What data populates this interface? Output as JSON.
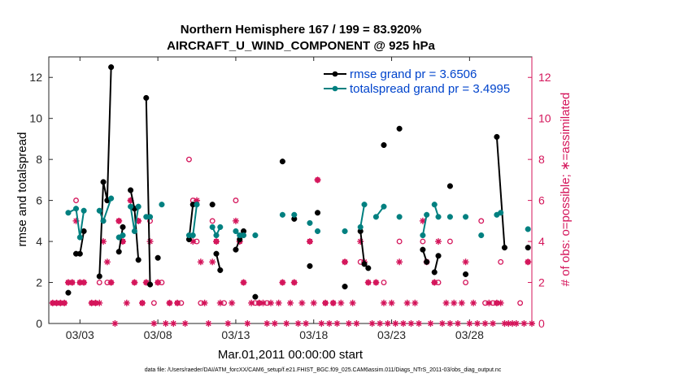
{
  "chart_data": {
    "type": "line",
    "title_line1": "Northern Hemisphere 167 / 199 = 83.920%",
    "title_line2": "AIRCRAFT_U_WIND_COMPONENT @ 925 hPa",
    "xlabel": "Mar.01,2011 00:00:00 start",
    "ylabel_left": "rmse and totalspread",
    "ylabel_right": "# of obs: o=possible; ∗=assimilated",
    "xlim": [
      1.0,
      32.0
    ],
    "ylim_left": [
      0,
      13
    ],
    "ylim_right": [
      0,
      13
    ],
    "x_ticks": [
      3,
      8,
      13,
      18,
      23,
      28
    ],
    "x_tick_labels": [
      "03/03",
      "03/08",
      "03/13",
      "03/18",
      "03/23",
      "03/28"
    ],
    "y_ticks_left": [
      0,
      2,
      4,
      6,
      8,
      10,
      12
    ],
    "y_ticks_right": [
      0,
      2,
      4,
      6,
      8,
      10,
      12
    ],
    "footnote": "data file: /Users/raeder/DAI/ATM_forcXX/CAM6_setup/f.e21.FHIST_BGC.f09_025.CAM6assim.011/Diags_NTrS_2011-03/obs_diag_output.nc",
    "colors": {
      "rmse": "#000000",
      "spread": "#008080",
      "obs": "#d4145a"
    },
    "series": [
      {
        "name": "rmse",
        "legend": "rmse grand pr = 3.6506",
        "color": "#000000",
        "points": [
          [
            2.25,
            1.5
          ],
          [
            2.75,
            3.4
          ],
          [
            3.0,
            3.4
          ],
          [
            3.25,
            4.5
          ],
          [
            4.25,
            2.3
          ],
          [
            4.5,
            6.9
          ],
          [
            4.75,
            6.0
          ],
          [
            5.0,
            12.5
          ],
          [
            5.5,
            3.5
          ],
          [
            5.75,
            4.7
          ],
          [
            6.25,
            6.5
          ],
          [
            6.5,
            5.6
          ],
          [
            6.75,
            3.1
          ],
          [
            7.25,
            11.0
          ],
          [
            7.5,
            1.9
          ],
          [
            8.0,
            3.2
          ],
          [
            10.0,
            4.1
          ],
          [
            10.25,
            5.8
          ],
          [
            11.5,
            5.8
          ],
          [
            11.75,
            3.4
          ],
          [
            12.0,
            2.6
          ],
          [
            13.0,
            3.6
          ],
          [
            13.25,
            4.1
          ],
          [
            13.5,
            4.5
          ],
          [
            14.25,
            1.3
          ],
          [
            16.0,
            7.9
          ],
          [
            16.75,
            5.1
          ],
          [
            17.75,
            2.8
          ],
          [
            18.25,
            5.4
          ],
          [
            20.0,
            1.8
          ],
          [
            21.0,
            4.5
          ],
          [
            21.25,
            2.9
          ],
          [
            21.5,
            2.7
          ],
          [
            22.5,
            8.7
          ],
          [
            23.5,
            9.5
          ],
          [
            25.0,
            3.6
          ],
          [
            25.25,
            3.0
          ],
          [
            25.75,
            2.5
          ],
          [
            26.0,
            3.3
          ],
          [
            26.75,
            6.7
          ],
          [
            27.75,
            2.4
          ],
          [
            29.75,
            9.1
          ],
          [
            30.25,
            3.7
          ],
          [
            31.75,
            3.7
          ]
        ],
        "segments": [
          [
            [
              2.75,
              3.4
            ],
            [
              3.0,
              3.4
            ],
            [
              3.25,
              4.5
            ]
          ],
          [
            [
              4.25,
              2.3
            ],
            [
              4.5,
              6.9
            ],
            [
              4.75,
              6.0
            ],
            [
              5.0,
              12.5
            ]
          ],
          [
            [
              5.5,
              3.5
            ],
            [
              5.75,
              4.7
            ]
          ],
          [
            [
              6.25,
              6.5
            ],
            [
              6.5,
              5.6
            ],
            [
              6.75,
              3.1
            ]
          ],
          [
            [
              7.25,
              11.0
            ],
            [
              7.5,
              1.9
            ]
          ],
          [
            [
              10.0,
              4.1
            ],
            [
              10.25,
              5.8
            ]
          ],
          [
            [
              11.75,
              3.4
            ],
            [
              12.0,
              2.6
            ]
          ],
          [
            [
              13.0,
              3.6
            ],
            [
              13.25,
              4.1
            ],
            [
              13.5,
              4.5
            ]
          ],
          [
            [
              21.0,
              4.5
            ],
            [
              21.25,
              2.9
            ],
            [
              21.5,
              2.7
            ]
          ],
          [
            [
              25.0,
              3.6
            ],
            [
              25.25,
              3.0
            ]
          ],
          [
            [
              25.75,
              2.5
            ],
            [
              26.0,
              3.3
            ]
          ],
          [
            [
              29.75,
              9.1
            ],
            [
              30.25,
              3.7
            ]
          ]
        ]
      },
      {
        "name": "totalspread",
        "legend": "totalspread grand pr = 3.4995",
        "color": "#008080",
        "points": [
          [
            2.25,
            5.4
          ],
          [
            2.75,
            5.6
          ],
          [
            3.0,
            4.2
          ],
          [
            3.25,
            5.5
          ],
          [
            4.25,
            5.5
          ],
          [
            4.5,
            5.0
          ],
          [
            5.0,
            6.1
          ],
          [
            5.5,
            4.2
          ],
          [
            5.75,
            4.3
          ],
          [
            6.25,
            5.7
          ],
          [
            6.5,
            4.5
          ],
          [
            6.75,
            5.7
          ],
          [
            7.25,
            5.2
          ],
          [
            7.5,
            5.2
          ],
          [
            8.25,
            5.8
          ],
          [
            10.0,
            4.3
          ],
          [
            10.25,
            4.3
          ],
          [
            10.5,
            5.8
          ],
          [
            11.5,
            4.7
          ],
          [
            11.75,
            4.3
          ],
          [
            12.0,
            4.7
          ],
          [
            13.0,
            4.5
          ],
          [
            13.25,
            4.3
          ],
          [
            13.5,
            4.3
          ],
          [
            14.25,
            4.3
          ],
          [
            16.0,
            5.3
          ],
          [
            16.75,
            5.3
          ],
          [
            17.75,
            4.9
          ],
          [
            18.25,
            4.5
          ],
          [
            20.0,
            4.5
          ],
          [
            21.0,
            4.7
          ],
          [
            21.25,
            5.8
          ],
          [
            22.0,
            5.2
          ],
          [
            22.5,
            5.7
          ],
          [
            23.5,
            5.2
          ],
          [
            25.0,
            4.3
          ],
          [
            25.25,
            5.3
          ],
          [
            25.75,
            5.8
          ],
          [
            26.0,
            5.2
          ],
          [
            26.75,
            5.2
          ],
          [
            27.75,
            5.2
          ],
          [
            28.75,
            4.3
          ],
          [
            29.75,
            5.3
          ],
          [
            30.0,
            5.4
          ],
          [
            31.75,
            4.6
          ]
        ],
        "segments": [
          [
            [
              2.25,
              5.4
            ],
            [
              2.75,
              5.6
            ],
            [
              3.0,
              4.2
            ],
            [
              3.25,
              5.5
            ]
          ],
          [
            [
              4.25,
              5.5
            ],
            [
              4.5,
              5.0
            ],
            [
              5.0,
              6.1
            ]
          ],
          [
            [
              5.5,
              4.2
            ],
            [
              5.75,
              4.3
            ]
          ],
          [
            [
              6.25,
              5.7
            ],
            [
              6.5,
              4.5
            ],
            [
              6.75,
              5.7
            ]
          ],
          [
            [
              7.25,
              5.2
            ],
            [
              7.5,
              5.2
            ]
          ],
          [
            [
              10.0,
              4.3
            ],
            [
              10.25,
              4.3
            ],
            [
              10.5,
              5.8
            ]
          ],
          [
            [
              11.5,
              4.7
            ],
            [
              11.75,
              4.3
            ],
            [
              12.0,
              4.7
            ]
          ],
          [
            [
              13.0,
              4.5
            ],
            [
              13.25,
              4.3
            ],
            [
              13.5,
              4.3
            ]
          ],
          [
            [
              21.0,
              4.7
            ],
            [
              21.25,
              5.8
            ]
          ],
          [
            [
              22.0,
              5.2
            ],
            [
              22.5,
              5.7
            ]
          ],
          [
            [
              25.0,
              4.3
            ],
            [
              25.25,
              5.3
            ]
          ],
          [
            [
              25.75,
              5.8
            ],
            [
              26.0,
              5.2
            ]
          ],
          [
            [
              29.75,
              5.3
            ],
            [
              30.0,
              5.4
            ]
          ]
        ]
      }
    ],
    "obs_possible": [
      [
        1.25,
        1
      ],
      [
        1.5,
        1
      ],
      [
        1.75,
        1
      ],
      [
        2.0,
        1
      ],
      [
        2.25,
        2
      ],
      [
        2.5,
        2
      ],
      [
        2.75,
        6
      ],
      [
        3.0,
        2
      ],
      [
        3.25,
        2
      ],
      [
        3.75,
        1
      ],
      [
        4.0,
        1
      ],
      [
        4.25,
        2
      ],
      [
        4.5,
        5
      ],
      [
        4.75,
        2
      ],
      [
        5.0,
        2
      ],
      [
        5.5,
        5
      ],
      [
        5.75,
        4
      ],
      [
        6.25,
        6
      ],
      [
        6.5,
        2
      ],
      [
        6.75,
        5
      ],
      [
        7.0,
        1
      ],
      [
        7.25,
        2
      ],
      [
        7.5,
        5
      ],
      [
        7.75,
        1
      ],
      [
        8.0,
        2
      ],
      [
        8.25,
        2
      ],
      [
        8.75,
        1
      ],
      [
        9.25,
        1
      ],
      [
        9.5,
        1
      ],
      [
        10.0,
        8
      ],
      [
        10.25,
        6
      ],
      [
        10.5,
        4
      ],
      [
        10.75,
        1
      ],
      [
        11.5,
        5
      ],
      [
        11.75,
        4
      ],
      [
        12.25,
        1
      ],
      [
        13.0,
        6
      ],
      [
        13.25,
        4
      ],
      [
        13.5,
        2
      ],
      [
        14.25,
        1
      ],
      [
        14.5,
        1
      ],
      [
        15.0,
        1
      ],
      [
        16.0,
        2
      ],
      [
        16.75,
        2
      ],
      [
        17.75,
        4
      ],
      [
        18.25,
        7
      ],
      [
        18.75,
        1
      ],
      [
        19.25,
        1
      ],
      [
        20.0,
        3
      ],
      [
        21.0,
        3
      ],
      [
        21.5,
        2
      ],
      [
        22.0,
        2
      ],
      [
        22.5,
        2
      ],
      [
        23.5,
        4
      ],
      [
        25.0,
        4
      ],
      [
        25.25,
        3
      ],
      [
        25.75,
        2
      ],
      [
        26.0,
        2
      ],
      [
        26.75,
        4
      ],
      [
        27.75,
        2
      ],
      [
        28.75,
        5
      ],
      [
        29.0,
        1
      ],
      [
        29.5,
        1
      ],
      [
        29.75,
        1
      ],
      [
        30.0,
        3
      ],
      [
        31.25,
        1
      ],
      [
        31.75,
        3
      ]
    ],
    "obs_assimilated": [
      [
        1.25,
        1
      ],
      [
        1.5,
        1
      ],
      [
        1.75,
        1
      ],
      [
        2.0,
        1
      ],
      [
        2.25,
        2
      ],
      [
        2.5,
        2
      ],
      [
        2.75,
        5
      ],
      [
        3.0,
        2
      ],
      [
        3.25,
        2
      ],
      [
        3.75,
        1
      ],
      [
        4.0,
        1
      ],
      [
        4.25,
        1
      ],
      [
        4.5,
        4
      ],
      [
        4.75,
        3
      ],
      [
        5.0,
        2
      ],
      [
        5.25,
        0
      ],
      [
        5.5,
        5
      ],
      [
        5.75,
        4
      ],
      [
        6.0,
        1
      ],
      [
        6.25,
        6
      ],
      [
        6.5,
        2
      ],
      [
        6.75,
        5
      ],
      [
        7.0,
        1
      ],
      [
        7.25,
        2
      ],
      [
        7.5,
        4
      ],
      [
        7.75,
        0
      ],
      [
        8.0,
        2
      ],
      [
        8.5,
        0
      ],
      [
        8.75,
        1
      ],
      [
        9.0,
        0
      ],
      [
        9.25,
        1
      ],
      [
        9.75,
        0
      ],
      [
        10.25,
        4
      ],
      [
        10.5,
        6
      ],
      [
        10.75,
        3
      ],
      [
        11.0,
        1
      ],
      [
        11.25,
        0
      ],
      [
        11.5,
        3
      ],
      [
        11.75,
        4
      ],
      [
        12.0,
        1
      ],
      [
        12.5,
        0
      ],
      [
        12.75,
        1
      ],
      [
        13.0,
        5
      ],
      [
        13.25,
        4
      ],
      [
        13.5,
        2
      ],
      [
        13.75,
        0
      ],
      [
        14.0,
        1
      ],
      [
        14.5,
        1
      ],
      [
        14.75,
        1
      ],
      [
        15.0,
        0
      ],
      [
        15.25,
        1
      ],
      [
        15.5,
        0
      ],
      [
        15.75,
        1
      ],
      [
        16.0,
        2
      ],
      [
        16.25,
        0
      ],
      [
        16.5,
        1
      ],
      [
        16.75,
        2
      ],
      [
        17.0,
        0
      ],
      [
        17.25,
        1
      ],
      [
        17.5,
        0
      ],
      [
        17.75,
        4
      ],
      [
        18.0,
        1
      ],
      [
        18.25,
        7
      ],
      [
        18.5,
        0
      ],
      [
        18.75,
        1
      ],
      [
        19.0,
        0
      ],
      [
        19.25,
        1
      ],
      [
        19.5,
        0
      ],
      [
        19.75,
        1
      ],
      [
        20.0,
        3
      ],
      [
        20.25,
        0
      ],
      [
        20.5,
        1
      ],
      [
        20.75,
        0
      ],
      [
        21.0,
        4
      ],
      [
        21.25,
        3
      ],
      [
        21.5,
        2
      ],
      [
        21.75,
        0
      ],
      [
        22.0,
        2
      ],
      [
        22.25,
        0
      ],
      [
        22.5,
        1
      ],
      [
        22.75,
        0
      ],
      [
        23.0,
        1
      ],
      [
        23.25,
        0
      ],
      [
        23.5,
        3
      ],
      [
        23.75,
        0
      ],
      [
        24.0,
        1
      ],
      [
        24.25,
        0
      ],
      [
        24.5,
        1
      ],
      [
        24.75,
        0
      ],
      [
        25.0,
        5
      ],
      [
        25.25,
        3
      ],
      [
        25.5,
        0
      ],
      [
        25.75,
        2
      ],
      [
        26.0,
        4
      ],
      [
        26.25,
        0
      ],
      [
        26.5,
        1
      ],
      [
        26.75,
        0
      ],
      [
        27.0,
        1
      ],
      [
        27.25,
        0
      ],
      [
        27.5,
        1
      ],
      [
        27.75,
        3
      ],
      [
        28.0,
        0
      ],
      [
        28.25,
        1
      ],
      [
        28.5,
        0
      ],
      [
        29.0,
        0
      ],
      [
        29.25,
        1
      ],
      [
        29.5,
        0
      ],
      [
        29.75,
        1
      ],
      [
        30.0,
        1
      ],
      [
        30.25,
        0
      ],
      [
        30.5,
        0
      ],
      [
        30.75,
        0
      ],
      [
        31.0,
        0
      ],
      [
        31.5,
        0
      ],
      [
        31.75,
        3
      ],
      [
        32.0,
        0
      ]
    ]
  }
}
